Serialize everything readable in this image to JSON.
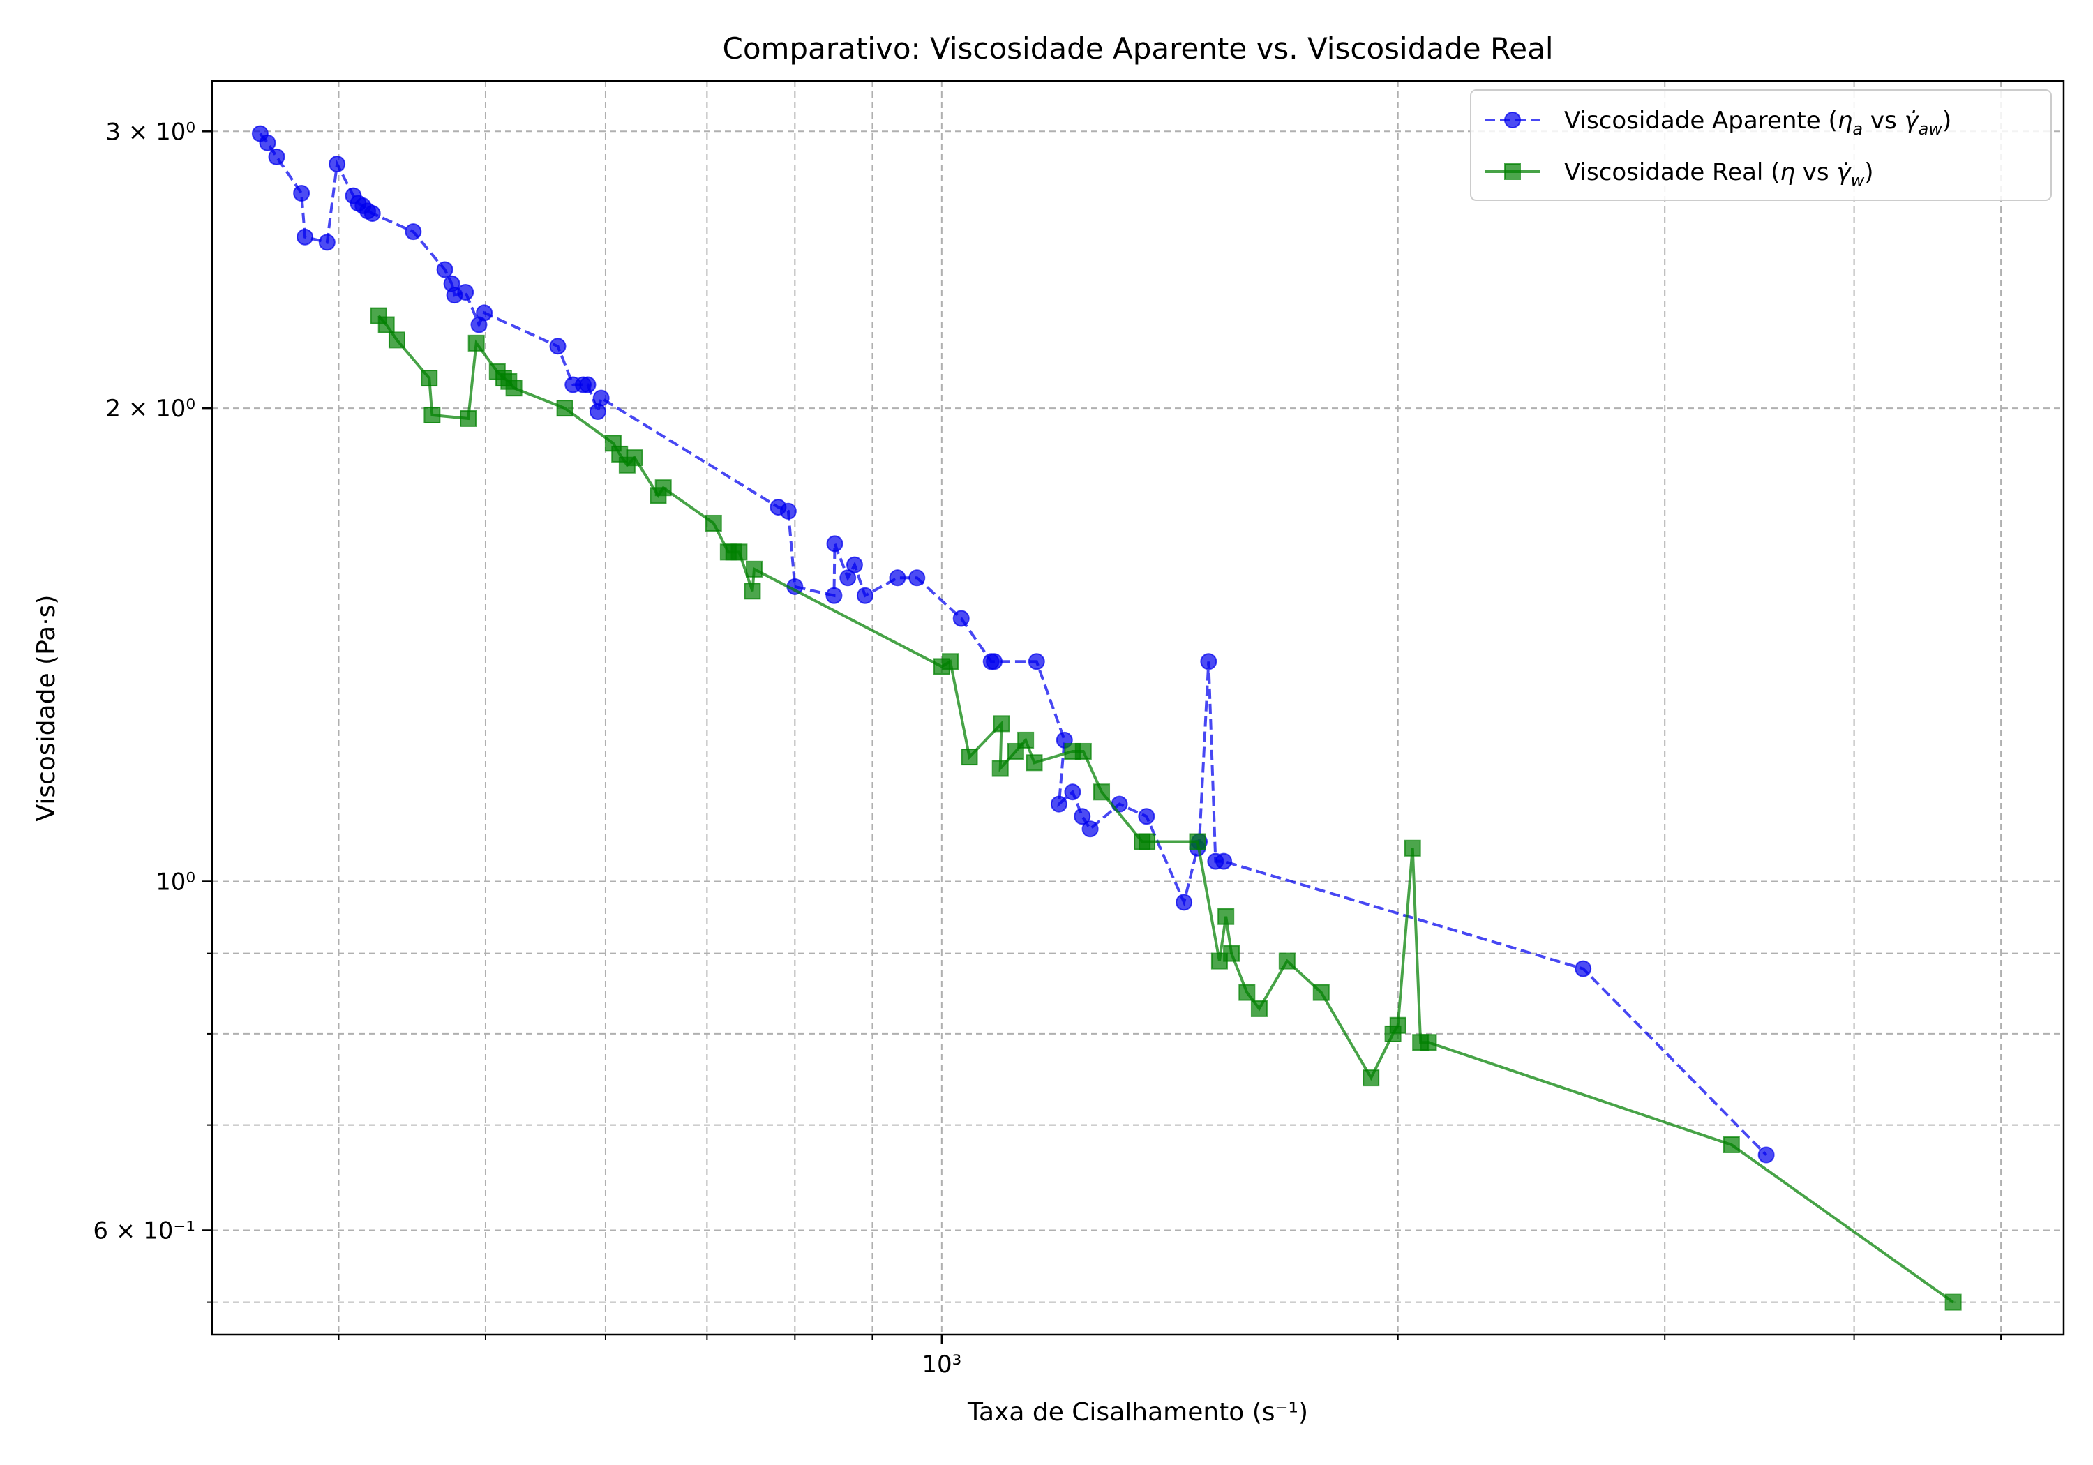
{
  "chart_data": {
    "type": "line",
    "title": "Comparativo: Viscosidade Aparente vs. Viscosidade Real",
    "xlabel": "Taxa de Cisalhamento (s⁻¹)",
    "ylabel": "Viscosidade (Pa·s)",
    "xscale": "log",
    "yscale": "log",
    "xlim": [
      330,
      5500
    ],
    "ylim": [
      0.515,
      3.23
    ],
    "x_major_ticks": [
      {
        "value": 1000,
        "label": "10³"
      }
    ],
    "x_minor_ticks": [
      400,
      500,
      600,
      700,
      800,
      900,
      2000,
      3000,
      4000,
      5000
    ],
    "y_major_ticks": [
      {
        "value": 0.6,
        "label": "6 × 10⁻¹"
      },
      {
        "value": 1.0,
        "label": "10⁰"
      },
      {
        "value": 2.0,
        "label": "2 × 10⁰"
      },
      {
        "value": 3.0,
        "label": "3 × 10⁰"
      }
    ],
    "y_minor_ticks": [
      0.7,
      0.8,
      0.9,
      0.54
    ],
    "grid": true,
    "legend_position": "top-right",
    "series": [
      {
        "name": "Viscosidade Aparente (ηa vs γ̇aw)",
        "legend_main": "Viscosidade Aparente (",
        "legend_eta": "η",
        "legend_eta_sub": "a",
        "legend_vs": " vs ",
        "legend_gamma": "γ̇",
        "legend_gamma_sub": "aw",
        "legend_close": ")",
        "color": "#0000ee",
        "line_style": "dashed",
        "marker": "circle",
        "points": [
          [
            355,
            2.99
          ],
          [
            359,
            2.95
          ],
          [
            364,
            2.89
          ],
          [
            378,
            2.74
          ],
          [
            380,
            2.57
          ],
          [
            393,
            2.55
          ],
          [
            399,
            2.86
          ],
          [
            409,
            2.73
          ],
          [
            412,
            2.7
          ],
          [
            415,
            2.69
          ],
          [
            418,
            2.67
          ],
          [
            421,
            2.66
          ],
          [
            448,
            2.59
          ],
          [
            470,
            2.45
          ],
          [
            475,
            2.4
          ],
          [
            477,
            2.36
          ],
          [
            485,
            2.37
          ],
          [
            495,
            2.26
          ],
          [
            499,
            2.3
          ],
          [
            558,
            2.19
          ],
          [
            571,
            2.07
          ],
          [
            580,
            2.07
          ],
          [
            584,
            2.07
          ],
          [
            593,
            1.99
          ],
          [
            596,
            2.03
          ],
          [
            780,
            1.73
          ],
          [
            792,
            1.72
          ],
          [
            800,
            1.54
          ],
          [
            849,
            1.52
          ],
          [
            850,
            1.64
          ],
          [
            867,
            1.56
          ],
          [
            876,
            1.59
          ],
          [
            890,
            1.52
          ],
          [
            935,
            1.56
          ],
          [
            963,
            1.56
          ],
          [
            1030,
            1.47
          ],
          [
            1078,
            1.38
          ],
          [
            1083,
            1.38
          ],
          [
            1155,
            1.38
          ],
          [
            1205,
            1.23
          ],
          [
            1195,
            1.12
          ],
          [
            1220,
            1.14
          ],
          [
            1238,
            1.1
          ],
          [
            1253,
            1.08
          ],
          [
            1310,
            1.12
          ],
          [
            1365,
            1.1
          ],
          [
            1445,
            0.97
          ],
          [
            1475,
            1.05
          ],
          [
            1479,
            1.06
          ],
          [
            1500,
            1.38
          ],
          [
            1516,
            1.03
          ],
          [
            1535,
            1.03
          ],
          [
            2650,
            0.88
          ],
          [
            3500,
            0.67
          ]
        ]
      },
      {
        "name": "Viscosidade Real (η vs γ̇w)",
        "legend_main": "Viscosidade Real (",
        "legend_eta": "η",
        "legend_eta_sub": "",
        "legend_vs": " vs ",
        "legend_gamma": "γ̇",
        "legend_gamma_sub": "w",
        "legend_close": ")",
        "color": "#008000",
        "line_style": "solid",
        "marker": "square",
        "points": [
          [
            425,
            2.29
          ],
          [
            430,
            2.26
          ],
          [
            437,
            2.21
          ],
          [
            459,
            2.09
          ],
          [
            461,
            1.98
          ],
          [
            487,
            1.97
          ],
          [
            493,
            2.2
          ],
          [
            509,
            2.11
          ],
          [
            514,
            2.09
          ],
          [
            518,
            2.08
          ],
          [
            522,
            2.06
          ],
          [
            564,
            2.0
          ],
          [
            607,
            1.9
          ],
          [
            613,
            1.87
          ],
          [
            620,
            1.84
          ],
          [
            627,
            1.86
          ],
          [
            650,
            1.76
          ],
          [
            655,
            1.78
          ],
          [
            707,
            1.69
          ],
          [
            723,
            1.62
          ],
          [
            729,
            1.62
          ],
          [
            735,
            1.62
          ],
          [
            750,
            1.53
          ],
          [
            752,
            1.58
          ],
          [
            1000,
            1.37
          ],
          [
            1013,
            1.38
          ],
          [
            1043,
            1.2
          ],
          [
            1095,
            1.26
          ],
          [
            1093,
            1.18
          ],
          [
            1119,
            1.21
          ],
          [
            1136,
            1.23
          ],
          [
            1151,
            1.19
          ],
          [
            1220,
            1.21
          ],
          [
            1240,
            1.21
          ],
          [
            1275,
            1.14
          ],
          [
            1356,
            1.06
          ],
          [
            1366,
            1.06
          ],
          [
            1475,
            1.06
          ],
          [
            1525,
            0.89
          ],
          [
            1540,
            0.95
          ],
          [
            1553,
            0.9
          ],
          [
            1590,
            0.85
          ],
          [
            1620,
            0.83
          ],
          [
            1690,
            0.89
          ],
          [
            1780,
            0.85
          ],
          [
            1920,
            0.75
          ],
          [
            1985,
            0.8
          ],
          [
            2000,
            0.81
          ],
          [
            2045,
            1.05
          ],
          [
            2070,
            0.79
          ],
          [
            2095,
            0.79
          ],
          [
            3320,
            0.68
          ],
          [
            4650,
            0.54
          ]
        ]
      }
    ]
  }
}
